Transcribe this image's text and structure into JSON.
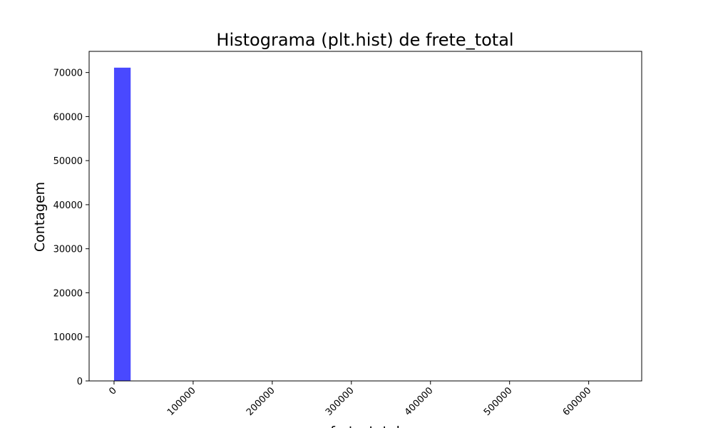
{
  "chart_data": {
    "type": "bar",
    "title": "Histograma (plt.hist) de frete_total",
    "xlabel": "frete_total",
    "ylabel": "Contagem",
    "bar_color": "#4949ff",
    "xlim": [
      -31500,
      667000
    ],
    "ylim": [
      0,
      74800
    ],
    "x_ticks": [
      0,
      100000,
      200000,
      300000,
      400000,
      500000,
      600000
    ],
    "x_tick_labels": [
      "0",
      "100000",
      "200000",
      "300000",
      "400000",
      "500000",
      "600000"
    ],
    "y_ticks": [
      0,
      10000,
      20000,
      30000,
      40000,
      50000,
      60000,
      70000
    ],
    "y_tick_labels": [
      "0",
      "10000",
      "20000",
      "30000",
      "40000",
      "50000",
      "60000",
      "70000"
    ],
    "grid": false,
    "bin_width": 21000,
    "bins": [
      {
        "x_start": 0,
        "x_end": 21000,
        "count": 71100
      }
    ]
  }
}
